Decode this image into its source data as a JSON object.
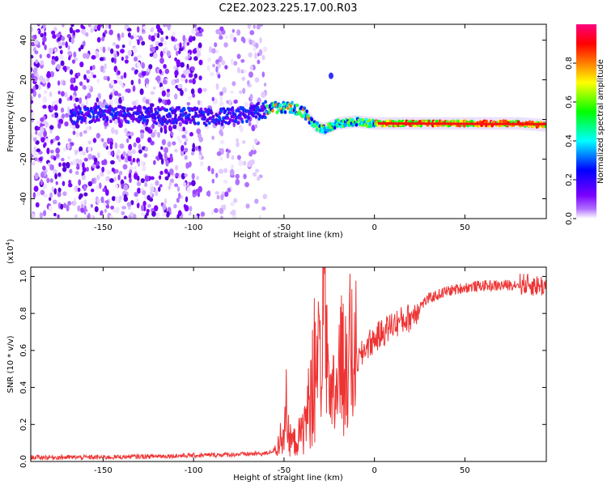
{
  "title": "C2E2.2023.225.17.00.R03",
  "chart_data": [
    {
      "type": "heatmap",
      "xlabel": "Height of straight line (km)",
      "ylabel": "Frequency (Hz)",
      "xlim": [
        -190,
        95
      ],
      "ylim": [
        -50,
        48
      ],
      "xticks": [
        -150,
        -100,
        -50,
        0,
        50
      ],
      "yticks": [
        -40,
        -20,
        0,
        20,
        40
      ],
      "colorbar": {
        "label": "Normalized spectral amplitude",
        "range": [
          0.0,
          1.0
        ],
        "ticks": [
          "0.0",
          "0.2",
          "0.4",
          "0.6",
          "0.8"
        ],
        "colormap": [
          "#ffffff",
          "#7a00ff",
          "#0000ff",
          "#00ffff",
          "#00ff00",
          "#ffff00",
          "#ff7f00",
          "#ff0000",
          "#ff0080"
        ]
      },
      "ridge": {
        "x": [
          -165,
          -150,
          -130,
          -110,
          -90,
          -75,
          -65,
          -55,
          -45,
          -38,
          -33,
          -28,
          -20,
          -10,
          0,
          20,
          50,
          80,
          95
        ],
        "y": [
          2,
          3,
          2,
          2,
          1,
          2,
          4,
          6,
          6,
          3,
          -3,
          -5,
          -2,
          -1,
          -2,
          -2,
          -2,
          -2,
          -3
        ]
      }
    },
    {
      "type": "line",
      "xlabel": "Height of straight line (km)",
      "ylabel": "SNR (10 * v/v)",
      "yunit": "(x10^4)",
      "yunit_base": "(x10",
      "yunit_exp": "4",
      "yunit_close": ")",
      "xlim": [
        -190,
        95
      ],
      "ylim": [
        0,
        1.05
      ],
      "xticks": [
        -150,
        -100,
        -50,
        0,
        50
      ],
      "yticks": [
        "0.0",
        "0.2",
        "0.4",
        "0.6",
        "0.8",
        "1.0"
      ],
      "color": "#ee3333",
      "series": [
        {
          "x": [
            -190,
            -150,
            -100,
            -60,
            -55,
            -50,
            -45,
            -40,
            -35,
            -30,
            -28,
            -25,
            -20,
            -15,
            -12,
            -8,
            -5,
            0,
            5,
            10,
            15,
            20,
            25,
            30,
            40,
            50,
            60,
            70,
            80,
            90,
            95
          ],
          "y": [
            0.01,
            0.01,
            0.02,
            0.03,
            0.05,
            0.18,
            0.1,
            0.15,
            0.35,
            0.55,
            0.9,
            0.25,
            0.45,
            0.6,
            0.55,
            0.55,
            0.62,
            0.66,
            0.7,
            0.74,
            0.76,
            0.78,
            0.84,
            0.88,
            0.92,
            0.94,
            0.95,
            0.95,
            0.96,
            0.95,
            0.95
          ]
        }
      ]
    }
  ]
}
